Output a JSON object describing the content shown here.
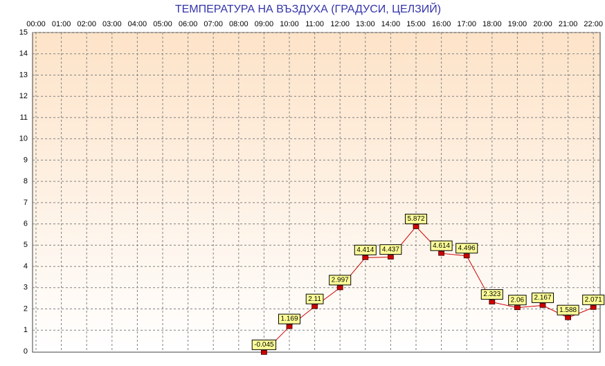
{
  "chart_data": {
    "type": "line",
    "title": "ТЕМПЕРАТУРА НА ВЪЗДУХА  (ГРАДУСИ, ЦЕЛЗИЙ)",
    "categories": [
      "00:00",
      "01:00",
      "02:00",
      "03:00",
      "04:00",
      "05:00",
      "06:00",
      "07:00",
      "08:00",
      "09:00",
      "10:00",
      "11:00",
      "12:00",
      "13:00",
      "14:00",
      "15:00",
      "16:00",
      "17:00",
      "18:00",
      "19:00",
      "20:00",
      "21:00",
      "22:00"
    ],
    "series": [
      {
        "color": "#cc0000",
        "values": [
          null,
          null,
          null,
          null,
          null,
          null,
          null,
          null,
          null,
          -0.045,
          1.169,
          2.11,
          2.997,
          4.414,
          4.437,
          5.872,
          4.614,
          4.496,
          2.323,
          2.06,
          2.167,
          1.588,
          2.071
        ]
      }
    ],
    "ylim": [
      0,
      15
    ],
    "yticks": [
      0,
      1,
      2,
      3,
      4,
      5,
      6,
      7,
      8,
      9,
      10,
      11,
      12,
      13,
      14,
      15
    ],
    "grid": true
  }
}
